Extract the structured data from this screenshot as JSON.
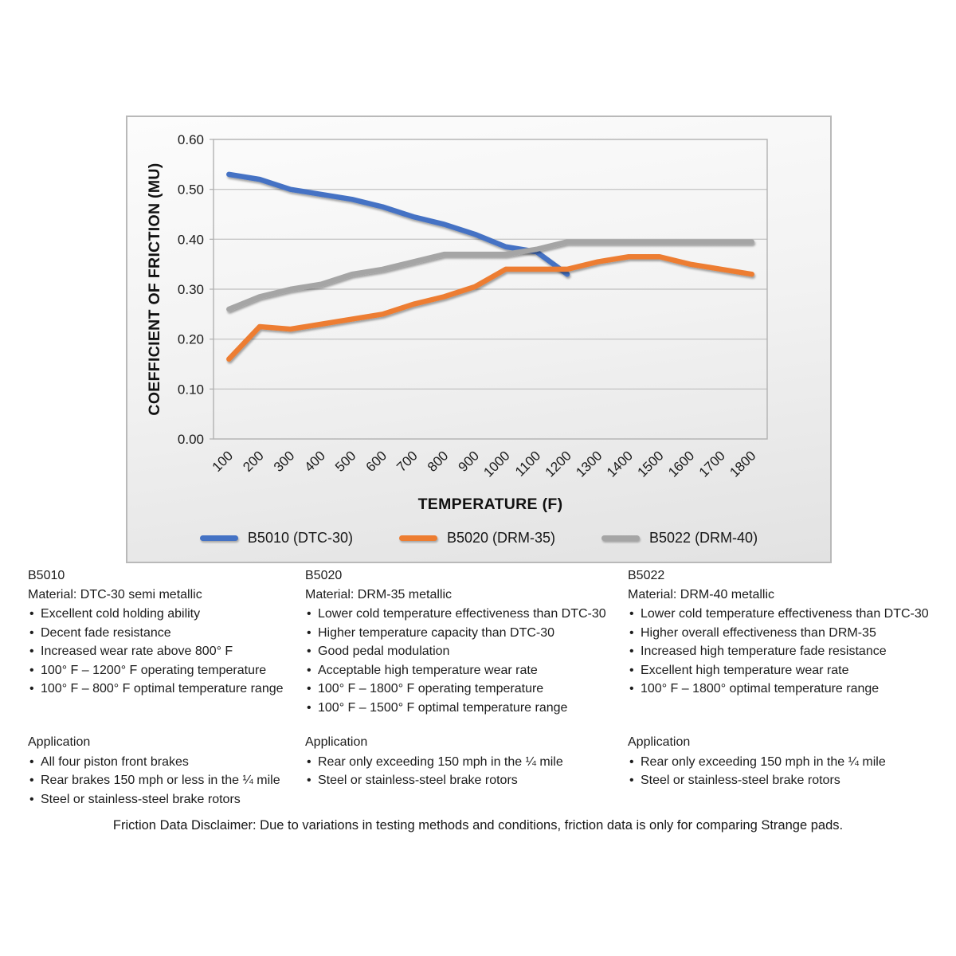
{
  "chart": {
    "panel_border_color": "#b9b9b9",
    "grid_color": "#c8c8c8",
    "plot_border_color": "#b2b2b2"
  },
  "chart_data": {
    "type": "line",
    "title": "",
    "xlabel": "TEMPERATURE (F)",
    "ylabel": "COEFFICIENT OF FRICTION (MU)",
    "categories": [
      100,
      200,
      300,
      400,
      500,
      600,
      700,
      800,
      900,
      1000,
      1100,
      1200,
      1300,
      1400,
      1500,
      1600,
      1700,
      1800
    ],
    "series": [
      {
        "name": "B5010 (DTC-30)",
        "color": "#4472C4",
        "values": [
          0.53,
          0.52,
          0.5,
          0.49,
          0.48,
          0.465,
          0.445,
          0.43,
          0.41,
          0.385,
          0.375,
          0.33,
          null,
          null,
          null,
          null,
          null,
          null
        ]
      },
      {
        "name": "B5020 (DRM-35)",
        "color": "#ED7D31",
        "values": [
          0.16,
          0.225,
          0.22,
          0.23,
          0.24,
          0.25,
          0.27,
          0.285,
          0.305,
          0.34,
          0.34,
          0.34,
          0.355,
          0.365,
          0.365,
          0.35,
          0.34,
          0.33
        ]
      },
      {
        "name": "B5022 (DRM-40)",
        "color": "#A5A5A5",
        "values": [
          0.26,
          0.285,
          0.3,
          0.31,
          0.33,
          0.34,
          0.355,
          0.37,
          0.37,
          0.37,
          0.38,
          0.395,
          0.395,
          0.395,
          0.395,
          0.395,
          0.395,
          0.395
        ]
      }
    ],
    "ylim": [
      0,
      0.6
    ],
    "ytick_step": 0.1,
    "ytick_decimals": 2,
    "grid": true,
    "legend_position": "bottom"
  },
  "columns": [
    {
      "id": "B5010",
      "material": "Material: DTC-30 semi metallic",
      "features": [
        "Excellent cold holding ability",
        "Decent fade resistance",
        "Increased wear rate above 800° F",
        "100° F – 1200° F operating temperature",
        "100° F – 800° F optimal temperature range"
      ],
      "application_title": "Application",
      "applications": [
        "All four piston front brakes",
        "Rear brakes 150 mph or less in the ¼ mile",
        "Steel or stainless-steel brake rotors"
      ]
    },
    {
      "id": "B5020",
      "material": "Material: DRM-35 metallic",
      "features": [
        "Lower cold temperature effectiveness than DTC-30",
        "Higher temperature capacity than DTC-30",
        "Good pedal modulation",
        "Acceptable high temperature wear rate",
        "100° F – 1800° F operating temperature",
        "100° F – 1500° F optimal temperature range"
      ],
      "application_title": "Application",
      "applications": [
        "Rear only exceeding 150 mph in the ¼ mile",
        "Steel or stainless-steel brake rotors"
      ]
    },
    {
      "id": "B5022",
      "material": "Material: DRM-40 metallic",
      "features": [
        "Lower cold temperature effectiveness than DTC-30",
        "Higher overall effectiveness than DRM-35",
        "Increased high temperature fade resistance",
        "Excellent high temperature wear rate",
        "100° F – 1800° optimal temperature range"
      ],
      "application_title": "Application",
      "applications": [
        "Rear only exceeding 150 mph in the ¼ mile",
        "Steel or stainless-steel brake rotors"
      ]
    }
  ],
  "disclaimer": "Friction Data Disclaimer:  Due to variations in testing methods and conditions, friction data is only for comparing Strange pads."
}
